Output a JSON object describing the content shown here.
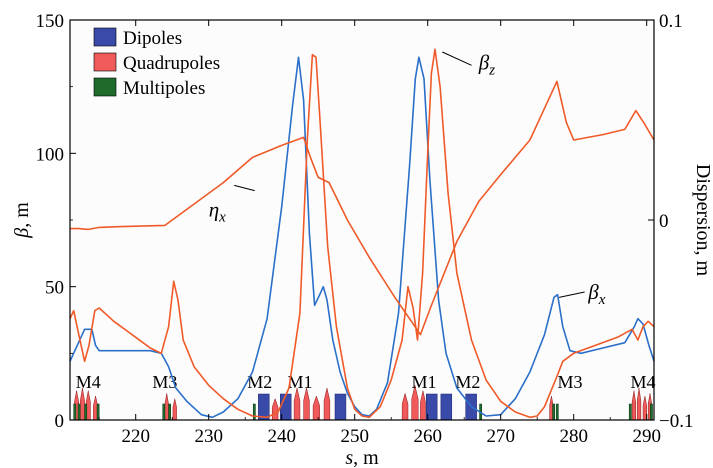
{
  "chart_data": {
    "type": "line",
    "xlabel": "s, m",
    "ylabel_left": "β, m",
    "ylabel_right": "Dispersion, m",
    "xlim": [
      211,
      291
    ],
    "ylim_left": [
      0,
      150
    ],
    "ylim_right": [
      -0.1,
      0.1
    ],
    "xticks": [
      "220",
      "230",
      "240",
      "250",
      "260",
      "270",
      "280",
      "290"
    ],
    "yticks_left": [
      "0",
      "50",
      "100",
      "150"
    ],
    "yticks_right": [
      "−0.1",
      "0",
      "0.1"
    ],
    "legend": {
      "position": "top-left",
      "entries": [
        {
          "label": "Dipoles",
          "color": "#3a4aa8"
        },
        {
          "label": "Quadrupoles",
          "color": "#f05a5a"
        },
        {
          "label": "Multipoles",
          "color": "#1e6b2c"
        }
      ]
    },
    "series": [
      {
        "key": "beta_x",
        "color": "#2a6fc9",
        "axis": "left",
        "points": [
          [
            211,
            22
          ],
          [
            212,
            28
          ],
          [
            213,
            34
          ],
          [
            214,
            34
          ],
          [
            214.5,
            28
          ],
          [
            215,
            26
          ],
          [
            218,
            26
          ],
          [
            222,
            26
          ],
          [
            223.5,
            25
          ],
          [
            224.5,
            20
          ],
          [
            225.5,
            12
          ],
          [
            227,
            7
          ],
          [
            229,
            2
          ],
          [
            230.5,
            1
          ],
          [
            232,
            3
          ],
          [
            234,
            8
          ],
          [
            236,
            18
          ],
          [
            238,
            38
          ],
          [
            240,
            80
          ],
          [
            241.5,
            118
          ],
          [
            242.3,
            136
          ],
          [
            243,
            120
          ],
          [
            243.8,
            70
          ],
          [
            244.5,
            43
          ],
          [
            245.2,
            47
          ],
          [
            245.7,
            50
          ],
          [
            246.2,
            45
          ],
          [
            247,
            30
          ],
          [
            248,
            18
          ],
          [
            249,
            10
          ],
          [
            250,
            5
          ],
          [
            251,
            2
          ],
          [
            252,
            1.5
          ],
          [
            253,
            4
          ],
          [
            254.5,
            14
          ],
          [
            256,
            40
          ],
          [
            257.5,
            95
          ],
          [
            258.3,
            128
          ],
          [
            258.8,
            136
          ],
          [
            259.5,
            128
          ],
          [
            260.3,
            90
          ],
          [
            261.5,
            45
          ],
          [
            262.5,
            25
          ],
          [
            264,
            12
          ],
          [
            266,
            5
          ],
          [
            268,
            1.5
          ],
          [
            270,
            2
          ],
          [
            272,
            8
          ],
          [
            274,
            18
          ],
          [
            276,
            32
          ],
          [
            277.3,
            46
          ],
          [
            277.8,
            47
          ],
          [
            278.5,
            35
          ],
          [
            279.5,
            26
          ],
          [
            281,
            25
          ],
          [
            284,
            27
          ],
          [
            287,
            29
          ],
          [
            288.3,
            35
          ],
          [
            288.8,
            38
          ],
          [
            289.5,
            36
          ],
          [
            290.3,
            28
          ],
          [
            291,
            22
          ]
        ]
      },
      {
        "key": "beta_z",
        "color": "#f05a28",
        "axis": "left",
        "points": [
          [
            211,
            38
          ],
          [
            211.5,
            41
          ],
          [
            212.2,
            32
          ],
          [
            213,
            22
          ],
          [
            213.6,
            28
          ],
          [
            214.4,
            41
          ],
          [
            215,
            42
          ],
          [
            217,
            37
          ],
          [
            220,
            31
          ],
          [
            222,
            27
          ],
          [
            223.5,
            25
          ],
          [
            224.5,
            35
          ],
          [
            225.2,
            52
          ],
          [
            225.8,
            45
          ],
          [
            226.5,
            30
          ],
          [
            228,
            20
          ],
          [
            230,
            13
          ],
          [
            232,
            8
          ],
          [
            234,
            4
          ],
          [
            236,
            1.5
          ],
          [
            238,
            1
          ],
          [
            239.5,
            3
          ],
          [
            241,
            12
          ],
          [
            242.5,
            40
          ],
          [
            243.5,
            105
          ],
          [
            244.2,
            137
          ],
          [
            244.7,
            136
          ],
          [
            245.3,
            110
          ],
          [
            246.3,
            65
          ],
          [
            247.5,
            35
          ],
          [
            249,
            12
          ],
          [
            250,
            4
          ],
          [
            251,
            1.5
          ],
          [
            252,
            1
          ],
          [
            253.5,
            5
          ],
          [
            255,
            15
          ],
          [
            256.5,
            30
          ],
          [
            257.3,
            50
          ],
          [
            258,
            42
          ],
          [
            258.6,
            30
          ],
          [
            259.3,
            55
          ],
          [
            260,
            100
          ],
          [
            260.5,
            130
          ],
          [
            261,
            139
          ],
          [
            261.7,
            125
          ],
          [
            262.8,
            85
          ],
          [
            264,
            55
          ],
          [
            266,
            30
          ],
          [
            268,
            15
          ],
          [
            270,
            7
          ],
          [
            272,
            3
          ],
          [
            274,
            1
          ],
          [
            275,
            1.5
          ],
          [
            276,
            5
          ],
          [
            277.5,
            15
          ],
          [
            278.5,
            22
          ],
          [
            280,
            25
          ],
          [
            283,
            28
          ],
          [
            286,
            31
          ],
          [
            288,
            34
          ],
          [
            288.8,
            30
          ],
          [
            289.5,
            35
          ],
          [
            290.2,
            37
          ],
          [
            291,
            35
          ]
        ]
      },
      {
        "key": "eta_x",
        "color": "#f05a28",
        "axis": "right",
        "points": [
          [
            211,
            -0.0043
          ],
          [
            212.2,
            -0.0043
          ],
          [
            213.5,
            -0.0047
          ],
          [
            215,
            -0.0037
          ],
          [
            218,
            -0.0033
          ],
          [
            224,
            -0.0027
          ],
          [
            227,
            0.0053
          ],
          [
            232,
            0.0187
          ],
          [
            236,
            0.0313
          ],
          [
            240,
            0.0373
          ],
          [
            243,
            0.0413
          ],
          [
            244,
            0.0307
          ],
          [
            245,
            0.0213
          ],
          [
            246.5,
            0.0187
          ],
          [
            249,
            0
          ],
          [
            252,
            -0.0187
          ],
          [
            255.5,
            -0.0387
          ],
          [
            257.5,
            -0.0493
          ],
          [
            259,
            -0.0573
          ],
          [
            260.5,
            -0.0427
          ],
          [
            264,
            -0.0107
          ],
          [
            267,
            0.0093
          ],
          [
            270,
            0.0227
          ],
          [
            274,
            0.04
          ],
          [
            277.7,
            0.0693
          ],
          [
            279,
            0.0487
          ],
          [
            280,
            0.04
          ],
          [
            284,
            0.0427
          ],
          [
            287,
            0.0453
          ],
          [
            288.5,
            0.0547
          ],
          [
            289.5,
            0.0493
          ],
          [
            291,
            0.04
          ]
        ]
      }
    ],
    "annotations": [
      {
        "label": "βz",
        "main": "β",
        "sub": "z",
        "x": 262,
        "y": 138,
        "tx": 267,
        "ty": 134,
        "arrow": [
          [
            262,
            138
          ],
          [
            266,
            133
          ]
        ]
      },
      {
        "label": "βx",
        "main": "β",
        "sub": "x",
        "x": 277.5,
        "y": 46,
        "tx": 282,
        "ty": 48,
        "arrow": [
          [
            278,
            46
          ],
          [
            281.5,
            48
          ]
        ]
      },
      {
        "label": "ηx",
        "main": "η",
        "sub": "x",
        "x": 236.5,
        "y": 88,
        "tx": 230,
        "ty": 79,
        "arrow": [
          [
            233.5,
            88
          ],
          [
            236.3,
            86
          ]
        ]
      }
    ],
    "magnet_groups": [
      {
        "label": "M4",
        "x": 213.5
      },
      {
        "label": "M3",
        "x": 224
      },
      {
        "label": "M2",
        "x": 237
      },
      {
        "label": "M1",
        "x": 242.5
      },
      {
        "label": "M1",
        "x": 259.5
      },
      {
        "label": "M2",
        "x": 265.5
      },
      {
        "label": "M3",
        "x": 279.5
      },
      {
        "label": "M4",
        "x": 289.5
      }
    ],
    "magnets": {
      "dipoles": [
        [
          236.8,
          238.3
        ],
        [
          239.8,
          241.3
        ],
        [
          247.3,
          248.8
        ],
        [
          259.8,
          261.3
        ],
        [
          261.8,
          263.3
        ],
        [
          265.2,
          266.7
        ]
      ],
      "quadrupoles": [
        [
          211.6,
          212.2,
          11
        ],
        [
          212.4,
          213.0,
          12
        ],
        [
          213.2,
          213.8,
          11
        ],
        [
          214.2,
          214.8,
          9
        ],
        [
          224.0,
          224.5,
          10
        ],
        [
          225.1,
          225.6,
          8
        ],
        [
          238.7,
          239.5,
          8
        ],
        [
          241.7,
          242.5,
          12
        ],
        [
          243.0,
          243.8,
          12
        ],
        [
          244.3,
          245.2,
          9
        ],
        [
          245.8,
          246.6,
          12
        ],
        [
          256.5,
          257.3,
          10
        ],
        [
          257.8,
          258.7,
          13
        ],
        [
          259.0,
          259.7,
          11
        ],
        [
          276.7,
          277.2,
          9
        ],
        [
          288.0,
          288.5,
          11
        ],
        [
          288.7,
          289.2,
          12
        ],
        [
          289.5,
          290.0,
          9
        ],
        [
          290.2,
          290.7,
          10
        ]
      ],
      "multipoles": [
        [
          211.5,
          211.8
        ],
        [
          212.1,
          212.4
        ],
        [
          213.0,
          213.3
        ],
        [
          214.7,
          215.0
        ],
        [
          223.7,
          224.0
        ],
        [
          224.5,
          224.8
        ],
        [
          236.1,
          236.4
        ],
        [
          267.1,
          267.4
        ],
        [
          277.1,
          277.4
        ],
        [
          277.6,
          277.9
        ],
        [
          287.6,
          287.9
        ],
        [
          290.5,
          290.8
        ]
      ]
    }
  }
}
